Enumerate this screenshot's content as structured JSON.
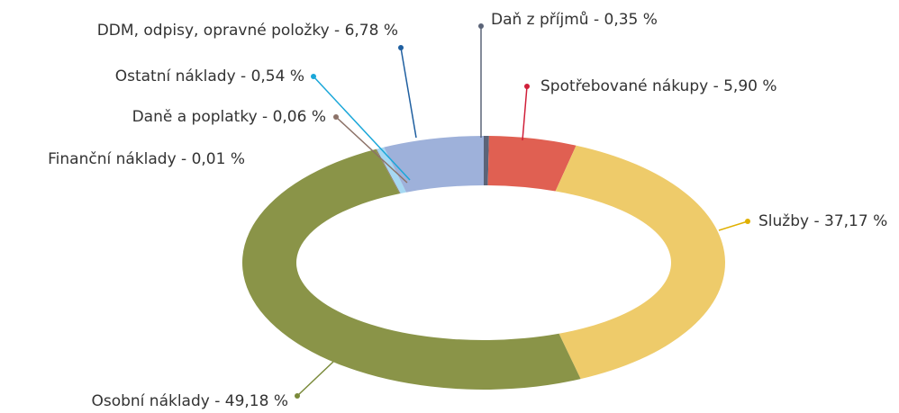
{
  "chart_data": {
    "type": "donut",
    "values": [
      0.35,
      5.9,
      37.17,
      49.18,
      0.01,
      0.06,
      0.54,
      6.78
    ],
    "value_labels": [
      "Daň z příjmů - 0,35 %",
      "Spotřebované nákupy - 5,90 %",
      "Služby - 37,17 %",
      "Osobní náklady - 49,18 %",
      "Finanční náklady - 0,01 %",
      "Daně a poplatky - 0,06 %",
      "Ostatní náklady - 0,54 %",
      "DDM, odpisy, opravné položky - 6,78 %"
    ],
    "colors": [
      "#5b6478",
      "#e06052",
      "#eecb6a",
      "#8a9448",
      "#6a7a40",
      "#8c7268",
      "#a6d8f2",
      "#9eb1da"
    ],
    "dot_colors": [
      "#5b6478",
      "#d0203a",
      "#e0b000",
      "#7a8a3a",
      "#6a7a40",
      "#8c7268",
      "#1aa7d9",
      "#1f5fa0"
    ]
  }
}
